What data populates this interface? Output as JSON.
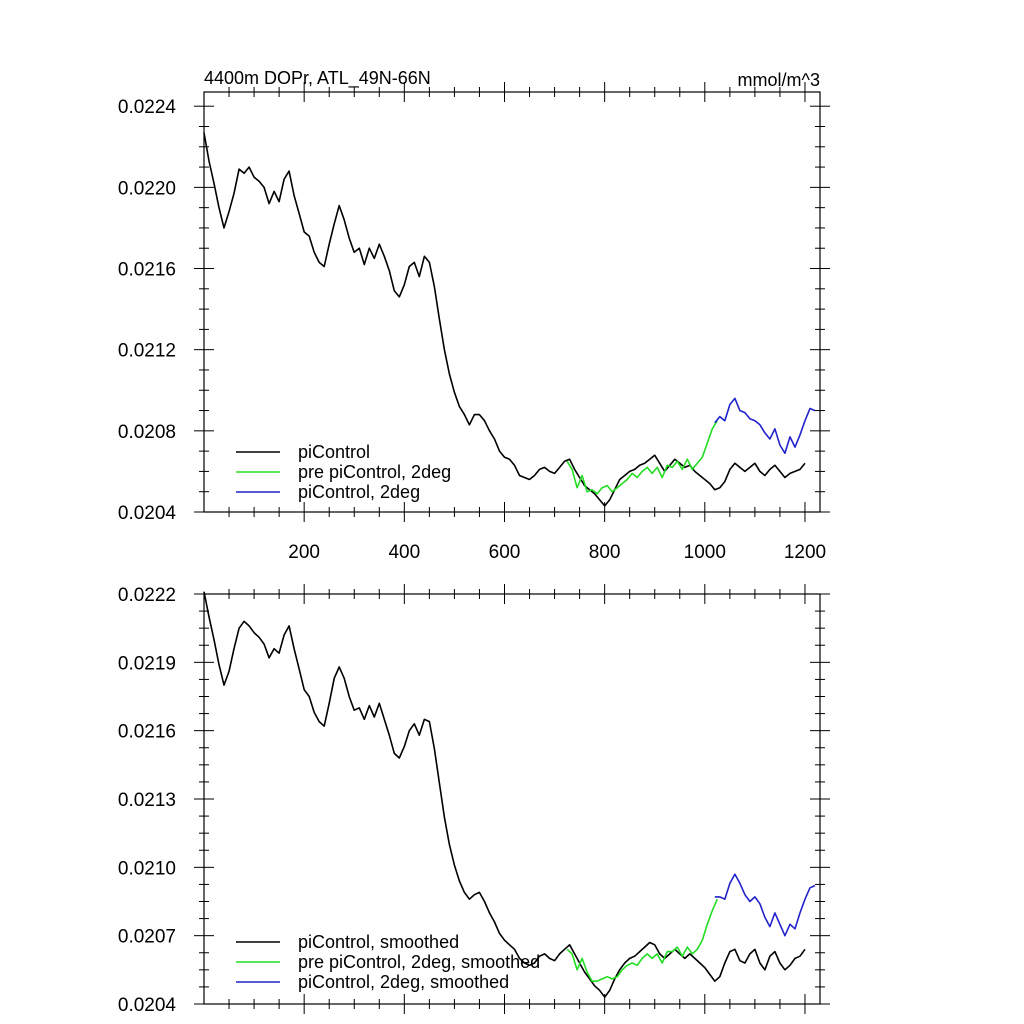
{
  "chart_data": [
    {
      "type": "line",
      "title": "4400m DOPr, ATL_49N-66N",
      "units": "mmol/m^3",
      "xlim": [
        0,
        1230
      ],
      "ylim": [
        0.0204,
        0.02247
      ],
      "xticks": [
        200,
        400,
        600,
        800,
        1000,
        1200
      ],
      "yticks": [
        0.0204,
        0.0208,
        0.0212,
        0.0216,
        0.022,
        0.0224
      ],
      "ytick_labels": [
        "0.0204",
        "0.0208",
        "0.0212",
        "0.0216",
        "0.0220",
        "0.0224"
      ],
      "legend_position": "bottom-left",
      "series": [
        {
          "name": "piControl",
          "color": "#000000",
          "x": [
            0,
            10,
            20,
            30,
            40,
            50,
            60,
            70,
            80,
            90,
            100,
            110,
            120,
            130,
            140,
            150,
            160,
            170,
            180,
            190,
            200,
            210,
            220,
            230,
            240,
            250,
            260,
            270,
            280,
            290,
            300,
            310,
            320,
            330,
            340,
            350,
            360,
            370,
            380,
            390,
            400,
            410,
            420,
            430,
            440,
            450,
            460,
            470,
            480,
            490,
            500,
            510,
            520,
            530,
            540,
            550,
            560,
            570,
            580,
            590,
            600,
            610,
            620,
            630,
            640,
            650,
            660,
            670,
            680,
            690,
            700,
            710,
            720,
            730,
            740,
            750,
            760,
            770,
            780,
            790,
            800,
            810,
            820,
            830,
            840,
            850,
            860,
            870,
            880,
            890,
            900,
            910,
            920,
            930,
            940,
            950,
            960,
            970,
            980,
            990,
            1000,
            1010,
            1020,
            1030,
            1040,
            1050,
            1060,
            1070,
            1080,
            1090,
            1100,
            1110,
            1120,
            1130,
            1140,
            1150,
            1160,
            1170,
            1180,
            1190,
            1200
          ],
          "y": [
            0.02227,
            0.02213,
            0.02202,
            0.0219,
            0.0218,
            0.02188,
            0.02197,
            0.02209,
            0.02207,
            0.0221,
            0.02205,
            0.02203,
            0.022,
            0.02192,
            0.02198,
            0.02193,
            0.02204,
            0.02208,
            0.02196,
            0.02187,
            0.02178,
            0.02176,
            0.02168,
            0.02163,
            0.02161,
            0.02172,
            0.02182,
            0.02191,
            0.02184,
            0.02175,
            0.02168,
            0.0217,
            0.02162,
            0.0217,
            0.02165,
            0.02172,
            0.02166,
            0.02159,
            0.02149,
            0.02146,
            0.02152,
            0.02161,
            0.02163,
            0.02156,
            0.02166,
            0.02163,
            0.02151,
            0.02135,
            0.0212,
            0.02108,
            0.02099,
            0.02092,
            0.02088,
            0.02083,
            0.02088,
            0.02088,
            0.02085,
            0.0208,
            0.02076,
            0.0207,
            0.02067,
            0.02066,
            0.02063,
            0.02058,
            0.02057,
            0.02056,
            0.02058,
            0.02061,
            0.02062,
            0.0206,
            0.02059,
            0.02062,
            0.02065,
            0.02066,
            0.02061,
            0.02057,
            0.02053,
            0.02051,
            0.02049,
            0.02046,
            0.02043,
            0.02046,
            0.02051,
            0.02056,
            0.02058,
            0.0206,
            0.02061,
            0.02063,
            0.02064,
            0.02066,
            0.02068,
            0.02064,
            0.0206,
            0.02063,
            0.02066,
            0.02064,
            0.02062,
            0.02063,
            0.0206,
            0.02058,
            0.02056,
            0.02054,
            0.02051,
            0.02052,
            0.02055,
            0.02061,
            0.02064,
            0.02062,
            0.0206,
            0.02062,
            0.02064,
            0.0206,
            0.02058,
            0.02061,
            0.02063,
            0.0206,
            0.02057,
            0.02059,
            0.0206,
            0.02061,
            0.02064
          ]
        },
        {
          "name": "pre piControl, 2deg",
          "color": "#22dd22",
          "x": [
            725,
            735,
            745,
            755,
            765,
            775,
            785,
            795,
            805,
            815,
            825,
            835,
            845,
            855,
            865,
            875,
            885,
            895,
            905,
            915,
            925,
            935,
            945,
            955,
            965,
            975,
            985,
            995,
            1005,
            1015,
            1025
          ],
          "y": [
            0.02065,
            0.02061,
            0.02052,
            0.02058,
            0.0205,
            0.02051,
            0.02049,
            0.02052,
            0.02053,
            0.0205,
            0.02052,
            0.02054,
            0.02056,
            0.02059,
            0.02057,
            0.0206,
            0.02062,
            0.02059,
            0.02062,
            0.02057,
            0.02063,
            0.02062,
            0.02065,
            0.02061,
            0.02066,
            0.02061,
            0.02064,
            0.02067,
            0.02074,
            0.02081,
            0.02085
          ]
        },
        {
          "name": "piControl, 2deg",
          "color": "#2222cc",
          "x": [
            1020,
            1030,
            1040,
            1050,
            1060,
            1070,
            1080,
            1090,
            1100,
            1110,
            1120,
            1130,
            1140,
            1150,
            1160,
            1170,
            1180,
            1190,
            1200,
            1210,
            1220
          ],
          "y": [
            0.02084,
            0.02087,
            0.02085,
            0.02093,
            0.02096,
            0.0209,
            0.02089,
            0.02086,
            0.02085,
            0.02083,
            0.02079,
            0.02076,
            0.02081,
            0.02073,
            0.02069,
            0.02077,
            0.02072,
            0.02078,
            0.02085,
            0.02091,
            0.0209
          ]
        }
      ]
    },
    {
      "type": "line",
      "xlim": [
        0,
        1230
      ],
      "ylim": [
        0.0204,
        0.0222
      ],
      "xticks": [
        200,
        400,
        600,
        800,
        1000,
        1200
      ],
      "yticks": [
        0.0204,
        0.0207,
        0.021,
        0.0213,
        0.0216,
        0.0219,
        0.0222
      ],
      "ytick_labels": [
        "0.0204",
        "0.0207",
        "0.0210",
        "0.0213",
        "0.0216",
        "0.0219",
        "0.0222"
      ],
      "legend_position": "bottom-left",
      "series": [
        {
          "name": "piControl, smoothed",
          "color": "#000000",
          "x": [
            0,
            10,
            20,
            30,
            40,
            50,
            60,
            70,
            80,
            90,
            100,
            110,
            120,
            130,
            140,
            150,
            160,
            170,
            180,
            190,
            200,
            210,
            220,
            230,
            240,
            250,
            260,
            270,
            280,
            290,
            300,
            310,
            320,
            330,
            340,
            350,
            360,
            370,
            380,
            390,
            400,
            410,
            420,
            430,
            440,
            450,
            460,
            470,
            480,
            490,
            500,
            510,
            520,
            530,
            540,
            550,
            560,
            570,
            580,
            590,
            600,
            610,
            620,
            630,
            640,
            650,
            660,
            670,
            680,
            690,
            700,
            710,
            720,
            730,
            740,
            750,
            760,
            770,
            780,
            790,
            800,
            810,
            820,
            830,
            840,
            850,
            860,
            870,
            880,
            890,
            900,
            910,
            920,
            930,
            940,
            950,
            960,
            970,
            980,
            990,
            1000,
            1010,
            1020,
            1030,
            1040,
            1050,
            1060,
            1070,
            1080,
            1090,
            1100,
            1110,
            1120,
            1130,
            1140,
            1150,
            1160,
            1170,
            1180,
            1190,
            1200
          ],
          "y": [
            0.02221,
            0.0221,
            0.022,
            0.02189,
            0.0218,
            0.02186,
            0.02196,
            0.02205,
            0.02208,
            0.02206,
            0.02203,
            0.02201,
            0.02198,
            0.02192,
            0.02196,
            0.02194,
            0.02202,
            0.02206,
            0.02196,
            0.02187,
            0.02178,
            0.02175,
            0.02168,
            0.02164,
            0.02162,
            0.02172,
            0.02183,
            0.02188,
            0.02183,
            0.02175,
            0.02169,
            0.0217,
            0.02165,
            0.02171,
            0.02166,
            0.02172,
            0.02165,
            0.02158,
            0.0215,
            0.02148,
            0.02153,
            0.0216,
            0.02163,
            0.02158,
            0.02165,
            0.02164,
            0.02152,
            0.02137,
            0.02122,
            0.0211,
            0.02101,
            0.02094,
            0.02089,
            0.02086,
            0.02088,
            0.02089,
            0.02085,
            0.0208,
            0.02076,
            0.02071,
            0.02068,
            0.02066,
            0.02064,
            0.0206,
            0.02058,
            0.02057,
            0.02058,
            0.02061,
            0.02062,
            0.0206,
            0.02059,
            0.02062,
            0.02064,
            0.02066,
            0.02062,
            0.02058,
            0.02054,
            0.02051,
            0.02048,
            0.02046,
            0.02043,
            0.02046,
            0.02051,
            0.02055,
            0.02058,
            0.0206,
            0.02061,
            0.02063,
            0.02065,
            0.02067,
            0.02066,
            0.02062,
            0.0206,
            0.02062,
            0.02064,
            0.02062,
            0.0206,
            0.02062,
            0.0206,
            0.02058,
            0.02056,
            0.02053,
            0.0205,
            0.02052,
            0.02058,
            0.02063,
            0.02064,
            0.02059,
            0.02058,
            0.02062,
            0.02064,
            0.02058,
            0.02055,
            0.02061,
            0.02063,
            0.02058,
            0.02055,
            0.02057,
            0.0206,
            0.02061,
            0.02064
          ]
        },
        {
          "name": "pre piControl, 2deg, smoothed",
          "color": "#22dd22",
          "x": [
            725,
            735,
            745,
            755,
            765,
            775,
            785,
            795,
            805,
            815,
            825,
            835,
            845,
            855,
            865,
            875,
            885,
            895,
            905,
            915,
            925,
            935,
            945,
            955,
            965,
            975,
            985,
            995,
            1005,
            1015,
            1025
          ],
          "y": [
            0.02064,
            0.02062,
            0.02055,
            0.0206,
            0.02054,
            0.0205,
            0.0205,
            0.02051,
            0.02052,
            0.02051,
            0.02052,
            0.02055,
            0.02057,
            0.02058,
            0.02057,
            0.0206,
            0.02062,
            0.0206,
            0.02062,
            0.02058,
            0.02063,
            0.02063,
            0.02065,
            0.02061,
            0.02065,
            0.02062,
            0.02064,
            0.02068,
            0.02075,
            0.02081,
            0.02086
          ]
        },
        {
          "name": "piControl, 2deg, smoothed",
          "color": "#2222cc",
          "x": [
            1020,
            1030,
            1040,
            1050,
            1060,
            1070,
            1080,
            1090,
            1100,
            1110,
            1120,
            1130,
            1140,
            1150,
            1160,
            1170,
            1180,
            1190,
            1200,
            1210,
            1220
          ],
          "y": [
            0.02087,
            0.02087,
            0.02086,
            0.02093,
            0.02097,
            0.02093,
            0.02088,
            0.02085,
            0.02087,
            0.02084,
            0.02078,
            0.02074,
            0.0208,
            0.02075,
            0.0207,
            0.02075,
            0.02073,
            0.0208,
            0.02086,
            0.02091,
            0.02092
          ]
        }
      ]
    }
  ]
}
